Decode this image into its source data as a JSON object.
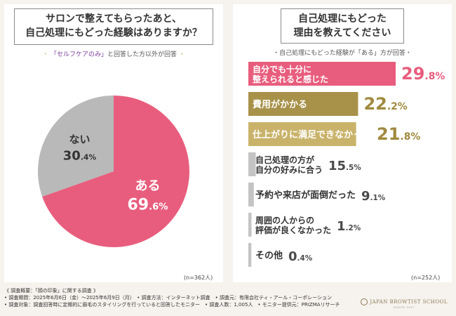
{
  "left": {
    "title_line1": "サロンで整えてもらったあと、",
    "title_line2": "自己処理にもどった経験はありますか？",
    "subtitle_prefix": "・",
    "subtitle_highlight": "「セルフケアのみ」",
    "subtitle_rest": "と回答した方以外が回答",
    "subtitle_suffix": "・",
    "n_label": "(n=362人)"
  },
  "right": {
    "title_line1": "自己処理にもどった",
    "title_line2": "理由を教えてください",
    "subtitle": "・自己処理にもどった経験が「ある」方が回答・",
    "n_label": "(n=252人)"
  },
  "footer": {
    "line1": "《 調査概要：「顔の印象」に関する調査 》",
    "line2": "• 調査期間：2025年6月6日（金）〜2025年6月9日（月）　• 調査方法：インターネット調査　• 調査元：有限会社ティ・アール・コーポレーション",
    "line3": "• 調査対象：調査回答時に定期的に眉毛のスタイリングを行っていると回答したモニター　• 調査人数：1,005人　• モニター提供元：PRIZMAリサーチ"
  },
  "brand": {
    "name": "JAPAN BROWTIST SCHOOL",
    "sub": "SINCE 2017"
  },
  "colors": {
    "pink": "#e85d7d",
    "gray": "#b9b9b9",
    "olive": "#a8924a",
    "gold": "#c9b36a",
    "lightgray": "#c4c4c4",
    "text_pink": "#e85d7d",
    "text_olive": "#a08a3e",
    "text_dark": "#4a4a4a"
  },
  "chart_data": [
    {
      "type": "pie",
      "title": "サロンで整えてもらったあと、自己処理にもどった経験はありますか？",
      "slices": [
        {
          "label": "ある",
          "value": 69.6,
          "unit": "%"
        },
        {
          "label": "ない",
          "value": 30.4,
          "unit": "%"
        }
      ]
    },
    {
      "type": "bar",
      "orientation": "horizontal",
      "title": "自己処理にもどった理由を教えてください",
      "categories": [
        [
          "自分でも十分に",
          "整えられると感じた"
        ],
        [
          "費用がかかる"
        ],
        [
          "仕上がりに満足できなかった"
        ],
        [
          "自己処理の方が",
          "自分の好みに合う"
        ],
        [
          "予約や来店が面倒だった"
        ],
        [
          "周囲の人からの",
          "評価が良くなかった"
        ],
        [
          "その他"
        ]
      ],
      "values": [
        29.8,
        22.2,
        21.8,
        15.5,
        9.1,
        1.2,
        0.4
      ],
      "value_labels": [
        {
          "int": "29",
          "dec": ".8",
          "unit": "%"
        },
        {
          "int": "22",
          "dec": ".2",
          "unit": "%"
        },
        {
          "int": "21",
          "dec": ".8",
          "unit": "%"
        },
        {
          "int": "15",
          "dec": ".5",
          "unit": "%"
        },
        {
          "int": "9",
          "dec": ".1",
          "unit": "%"
        },
        {
          "int": "1",
          "dec": ".2",
          "unit": "%"
        },
        {
          "int": "0",
          "dec": ".4",
          "unit": "%"
        }
      ]
    }
  ]
}
